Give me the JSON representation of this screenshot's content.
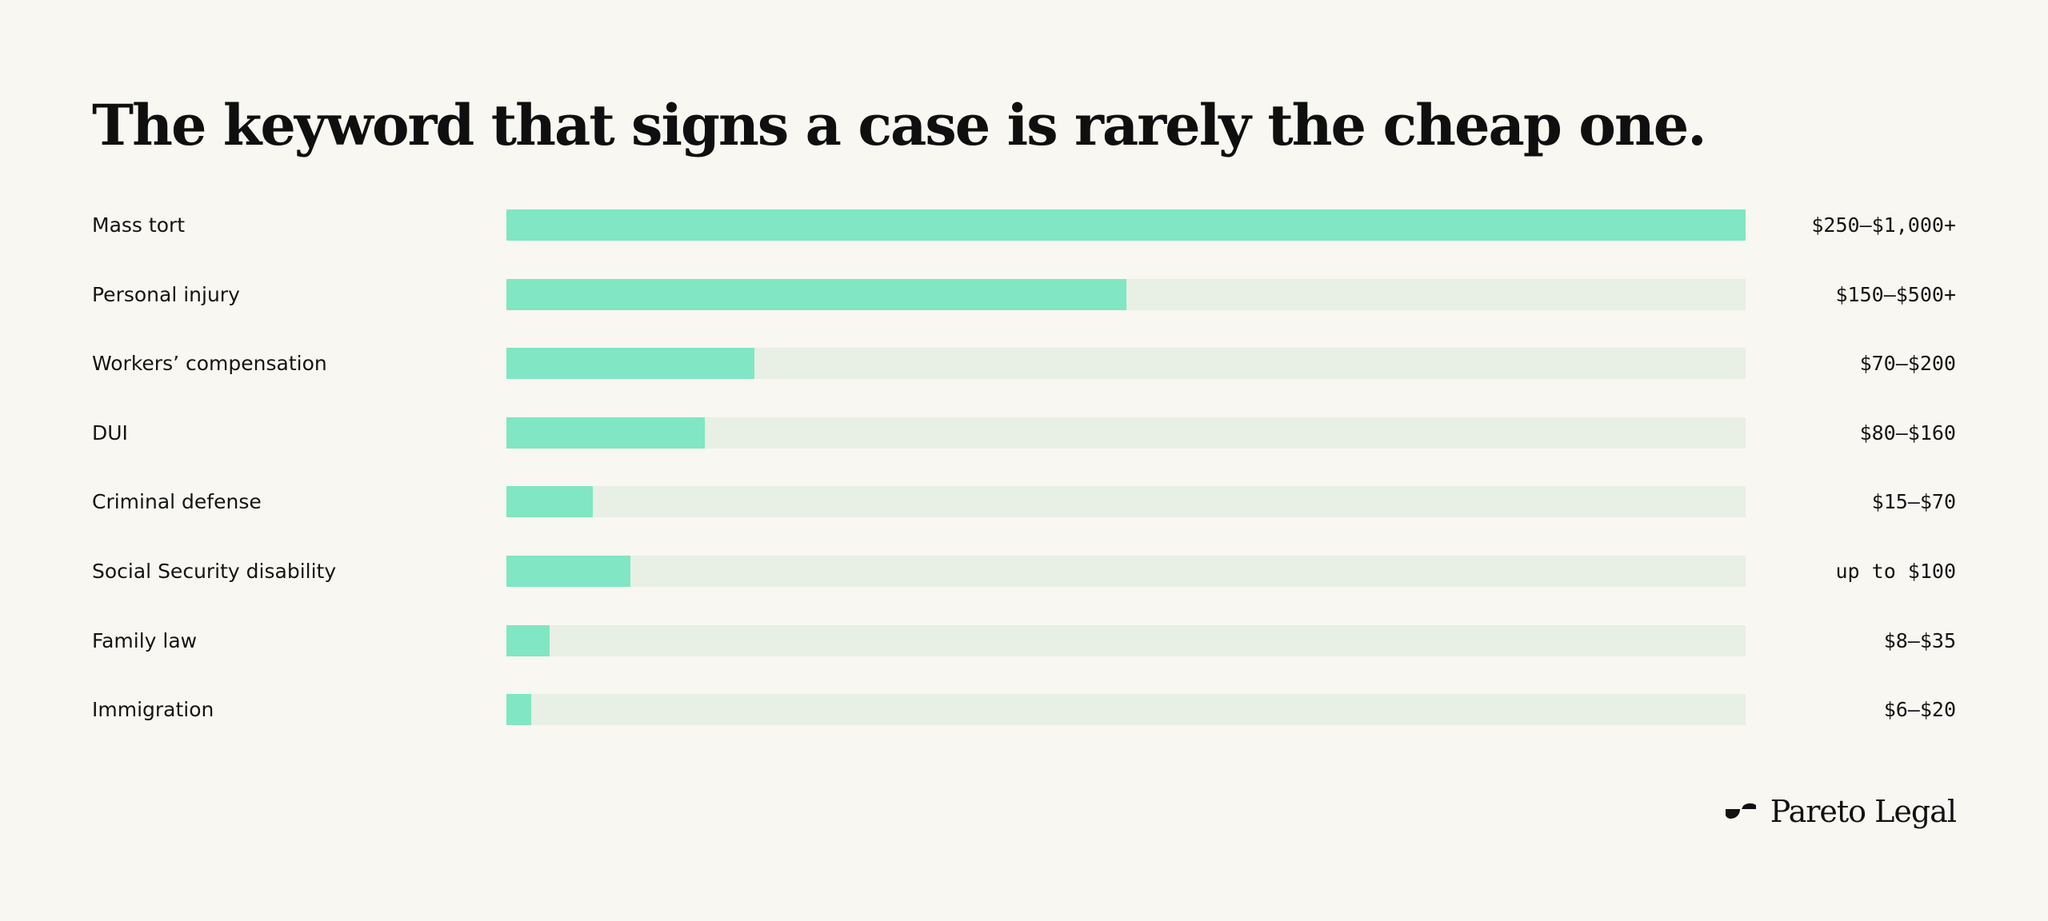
{
  "chart_data": {
    "type": "bar",
    "orientation": "horizontal",
    "title": "The keyword that signs a case is rarely the cheap one.",
    "categories": [
      "Mass tort",
      "Personal injury",
      "Workers’ compensation",
      "DUI",
      "Criminal defense",
      "Social Security disability",
      "Family law",
      "Immigration"
    ],
    "values": [
      1000,
      500,
      200,
      160,
      70,
      100,
      35,
      20
    ],
    "value_labels": [
      "$250–$1,000+",
      "$150–$500+",
      "$70–$200",
      "$80–$160",
      "$15–$70",
      "up to $100",
      "$8–$35",
      "$6–$20"
    ],
    "xlim": [
      0,
      1000
    ],
    "grid": false,
    "legend": "none"
  },
  "brand": {
    "name": "Pareto Legal"
  },
  "colors": {
    "background": "#f9f7f1",
    "bar_fill": "#80e6c3",
    "bar_track": "#e8efe5",
    "text": "#111111"
  }
}
